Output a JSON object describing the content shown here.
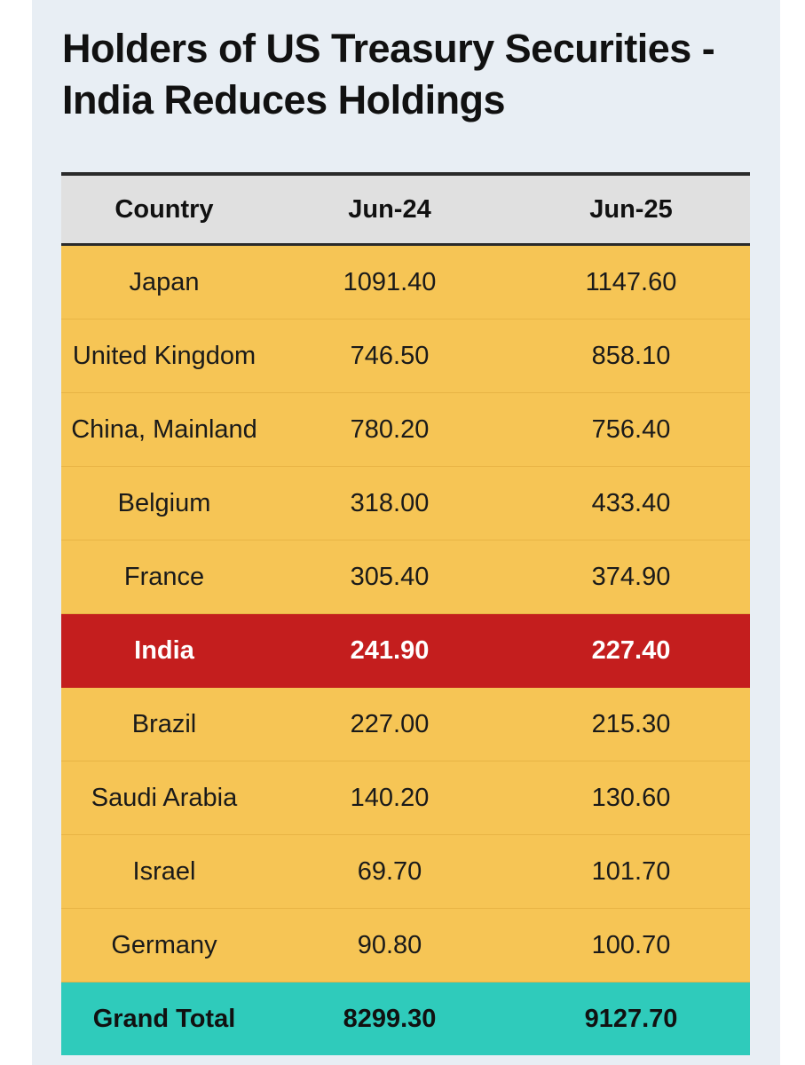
{
  "title": "Holders of US Treasury Securities - India Reduces Holdings",
  "colors": {
    "background": "#e8eef4",
    "row": "#f6c555",
    "highlight_row": "#c41e1e",
    "total_row": "#2fcbbb",
    "header_row": "#e0e0e0"
  },
  "chart_data": {
    "type": "table",
    "title": "Holders of US Treasury Securities - India Reduces Holdings",
    "columns": [
      "Country",
      "Jun-24",
      "Jun-25"
    ],
    "rows": [
      {
        "country": "Japan",
        "jun24": "1091.40",
        "jun25": "1147.60"
      },
      {
        "country": "United Kingdom",
        "jun24": "746.50",
        "jun25": "858.10"
      },
      {
        "country": "China, Mainland",
        "jun24": "780.20",
        "jun25": "756.40"
      },
      {
        "country": "Belgium",
        "jun24": "318.00",
        "jun25": "433.40"
      },
      {
        "country": "France",
        "jun24": "305.40",
        "jun25": "374.90"
      },
      {
        "country": "India",
        "jun24": "241.90",
        "jun25": "227.40",
        "highlight": true
      },
      {
        "country": "Brazil",
        "jun24": "227.00",
        "jun25": "215.30"
      },
      {
        "country": "Saudi Arabia",
        "jun24": "140.20",
        "jun25": "130.60"
      },
      {
        "country": "Israel",
        "jun24": "69.70",
        "jun25": "101.70"
      },
      {
        "country": "Germany",
        "jun24": "90.80",
        "jun25": "100.70"
      }
    ],
    "total": {
      "label": "Grand Total",
      "jun24": "8299.30",
      "jun25": "9127.70"
    }
  }
}
